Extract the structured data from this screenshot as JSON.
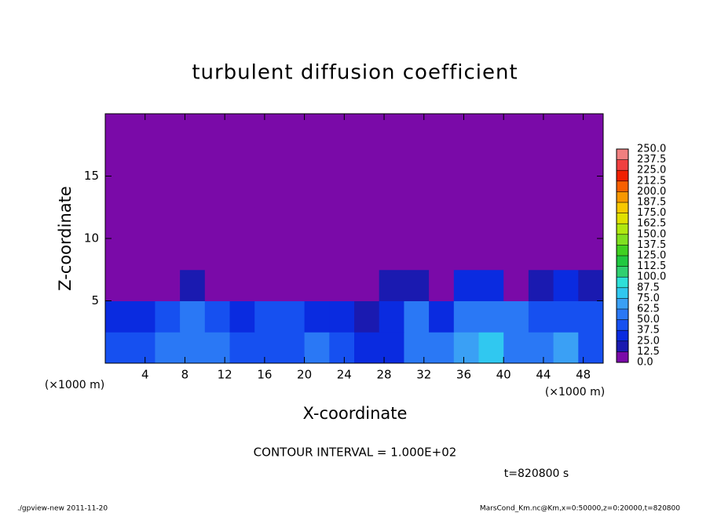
{
  "chart_data": {
    "type": "heatmap",
    "title": "turbulent diffusion coefficient",
    "x_label": "X-coordinate",
    "y_label": "Z-coordinate",
    "x_unit": "(×1000 m)",
    "y_unit": "(×1000 m)",
    "xlim": [
      0,
      50
    ],
    "ylim": [
      0,
      20
    ],
    "xticks": [
      4,
      8,
      12,
      16,
      20,
      24,
      28,
      32,
      36,
      40,
      44,
      48
    ],
    "yticks": [
      5,
      10,
      15
    ],
    "x": [
      1.25,
      3.75,
      6.25,
      8.75,
      11.25,
      13.75,
      16.25,
      18.75,
      21.25,
      23.75,
      26.25,
      28.75,
      31.25,
      33.75,
      36.25,
      38.75,
      41.25,
      43.75,
      46.25,
      48.75
    ],
    "y": [
      1.25,
      3.75,
      6.25,
      8.75,
      11.25,
      13.75,
      16.25,
      18.75
    ],
    "values": [
      [
        40,
        45,
        50,
        55,
        50,
        45,
        40,
        45,
        50,
        40,
        35,
        30,
        60,
        50,
        70,
        80,
        60,
        55,
        65,
        45
      ],
      [
        30,
        30,
        45,
        50,
        40,
        35,
        45,
        40,
        35,
        30,
        20,
        30,
        55,
        35,
        50,
        60,
        55,
        40,
        45,
        40
      ],
      [
        5,
        5,
        5,
        15,
        10,
        10,
        5,
        5,
        5,
        5,
        5,
        15,
        20,
        5,
        25,
        30,
        5,
        20,
        30,
        15
      ],
      [
        10,
        5,
        5,
        5,
        5,
        5,
        5,
        5,
        5,
        5,
        5,
        5,
        5,
        5,
        10,
        10,
        5,
        5,
        5,
        5
      ],
      [
        10,
        3,
        2,
        2,
        3,
        2,
        2,
        2,
        2,
        2,
        2,
        2,
        2,
        2,
        2,
        2,
        2,
        2,
        2,
        3
      ],
      [
        2,
        2,
        2,
        2,
        2,
        2,
        2,
        2,
        2,
        2,
        2,
        2,
        2,
        2,
        2,
        2,
        2,
        2,
        2,
        2
      ],
      [
        2,
        2,
        2,
        2,
        2,
        2,
        2,
        2,
        2,
        2,
        2,
        2,
        2,
        2,
        2,
        2,
        2,
        2,
        2,
        2
      ],
      [
        2,
        2,
        2,
        2,
        2,
        2,
        2,
        2,
        2,
        2,
        2,
        2,
        2,
        2,
        2,
        2,
        2,
        2,
        2,
        2
      ]
    ],
    "levels": [
      {
        "value": 0,
        "label": "0.0"
      },
      {
        "value": 12.5,
        "label": "12.5"
      },
      {
        "value": 25,
        "label": "25.0"
      },
      {
        "value": 37.5,
        "label": "37.5"
      },
      {
        "value": 50,
        "label": "50.0"
      },
      {
        "value": 62.5,
        "label": "62.5"
      },
      {
        "value": 75,
        "label": "75.0"
      },
      {
        "value": 87.5,
        "label": "87.5"
      },
      {
        "value": 100,
        "label": "100.0"
      },
      {
        "value": 112.5,
        "label": "112.5"
      },
      {
        "value": 125,
        "label": "125.0"
      },
      {
        "value": 137.5,
        "label": "137.5"
      },
      {
        "value": 150,
        "label": "150.0"
      },
      {
        "value": 162.5,
        "label": "162.5"
      },
      {
        "value": 175,
        "label": "175.0"
      },
      {
        "value": 187.5,
        "label": "187.5"
      },
      {
        "value": 200,
        "label": "200.0"
      },
      {
        "value": 212.5,
        "label": "212.5"
      },
      {
        "value": 225,
        "label": "225.0"
      },
      {
        "value": 237.5,
        "label": "237.5"
      },
      {
        "value": 250,
        "label": "250.0"
      }
    ],
    "colors": [
      "#7a0aa8",
      "#1a1ab0",
      "#0a2be0",
      "#1650f0",
      "#2a78f5",
      "#3aa0f5",
      "#30c8f0",
      "#2ee0d8",
      "#30d070",
      "#20c840",
      "#40d020",
      "#80e020",
      "#b0e810",
      "#e0e000",
      "#f8c800",
      "#f89800",
      "#f86000",
      "#f02000",
      "#f04040",
      "#f08080"
    ],
    "contour_note": "CONTOUR INTERVAL = 1.000E+02",
    "time_label": "t=820800 s",
    "footer_left": "./gpview-new   2011-11-20",
    "footer_right": "MarsCond_Km.nc@Km,x=0:50000,z=0:20000,t=820800"
  }
}
